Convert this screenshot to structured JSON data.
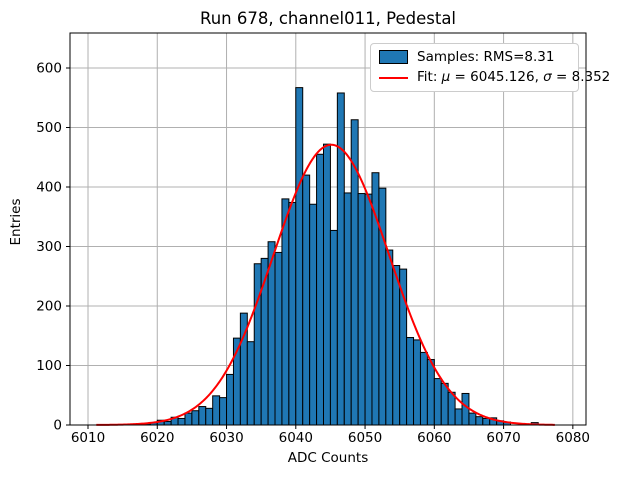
{
  "chart_data": {
    "type": "bar",
    "subtype": "histogram",
    "title": "Run 678, channel011, Pedestal",
    "xlabel": "ADC Counts",
    "ylabel": "Entries",
    "grid": true,
    "legend_position": "upper right",
    "x_ticks": [
      6010,
      6020,
      6030,
      6040,
      6050,
      6060,
      6070,
      6080
    ],
    "y_ticks": [
      0,
      100,
      200,
      300,
      400,
      500,
      600
    ],
    "xlim": [
      6007.4,
      6081.9
    ],
    "ylim": [
      0,
      658.8
    ],
    "bins_start": 6018,
    "bin_width": 1,
    "counts": [
      2,
      4,
      8,
      6,
      13,
      11,
      20,
      24,
      31,
      28,
      49,
      46,
      85,
      146,
      188,
      140,
      271,
      280,
      308,
      290,
      380,
      374,
      567,
      420,
      371,
      455,
      472,
      327,
      558,
      390,
      513,
      389,
      388,
      424,
      398,
      294,
      268,
      262,
      147,
      143,
      122,
      110,
      78,
      70,
      55,
      27,
      53,
      20,
      14,
      11,
      12,
      7,
      5,
      0,
      0,
      0,
      4
    ],
    "samples_rms": 8.31,
    "fit": {
      "mu": 6045.126,
      "sigma": 8.352,
      "amplitude": 471,
      "x_start": 6011.2,
      "x_end": 6077.5,
      "color": "#ff0000"
    },
    "bar_color": "#1f77b4",
    "bar_edge_color": "#000000",
    "grid_color": "#b0b0b0",
    "legend": {
      "samples": "Samples: RMS=8.31",
      "fit_prefix": "Fit: ",
      "mu_symbol": "μ",
      "fit_mid": " = 6045.126, ",
      "sigma_symbol": "σ",
      "fit_suffix": " = 8.352"
    }
  }
}
